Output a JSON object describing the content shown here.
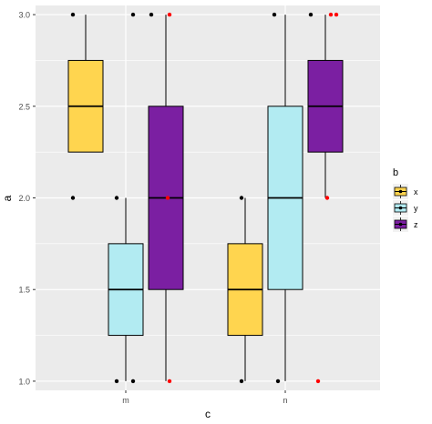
{
  "chart_data": {
    "type": "boxplot",
    "xlabel": "c",
    "ylabel": "a",
    "categories": [
      "m",
      "n"
    ],
    "ylim": [
      0.95,
      3.05
    ],
    "yticks": [
      1.0,
      1.5,
      2.0,
      2.5,
      3.0
    ],
    "ytick_labels": [
      "1.0",
      "1.5",
      "2.0",
      "2.5",
      "3.0"
    ],
    "grid": true,
    "legend": {
      "title": "b",
      "position": "right",
      "entries": [
        {
          "label": "x",
          "color": "#FFD54F"
        },
        {
          "label": "y",
          "color": "#B2EBF2"
        },
        {
          "label": "z",
          "color": "#7B1FA2"
        }
      ]
    },
    "series": [
      {
        "name": "x",
        "color": "#FFD54F",
        "boxes": [
          {
            "category": "m",
            "min": 2.25,
            "q1": 2.25,
            "median": 2.5,
            "q3": 2.75,
            "max": 3.0
          },
          {
            "category": "n",
            "min": 1.0,
            "q1": 1.25,
            "median": 1.5,
            "q3": 1.75,
            "max": 2.0
          }
        ],
        "points": [
          {
            "category": "m",
            "offset": -0.7,
            "y": 3.0,
            "color": "#000000"
          },
          {
            "category": "m",
            "offset": -0.7,
            "y": 2.0,
            "color": "#000000"
          },
          {
            "category": "n",
            "offset": -0.2,
            "y": 2.0,
            "color": "#000000"
          },
          {
            "category": "n",
            "offset": -0.2,
            "y": 1.0,
            "color": "#000000"
          }
        ]
      },
      {
        "name": "y",
        "color": "#B2EBF2",
        "boxes": [
          {
            "category": "m",
            "min": 1.0,
            "q1": 1.25,
            "median": 1.5,
            "q3": 1.75,
            "max": 2.0
          },
          {
            "category": "n",
            "min": 1.0,
            "q1": 1.5,
            "median": 2.0,
            "q3": 2.5,
            "max": 3.0
          }
        ],
        "points": [
          {
            "category": "m",
            "offset": -0.5,
            "y": 2.0,
            "color": "#000000"
          },
          {
            "category": "m",
            "offset": -0.5,
            "y": 1.0,
            "color": "#000000"
          },
          {
            "category": "m",
            "offset": 0.4,
            "y": 1.0,
            "color": "#000000"
          },
          {
            "category": "m",
            "offset": 0.4,
            "y": 3.0,
            "color": "#000000"
          },
          {
            "category": "n",
            "offset": -0.6,
            "y": 3.0,
            "color": "#000000"
          },
          {
            "category": "n",
            "offset": -0.4,
            "y": 1.0,
            "color": "#000000"
          }
        ]
      },
      {
        "name": "z",
        "color": "#7B1FA2",
        "boxes": [
          {
            "category": "m",
            "min": 1.0,
            "q1": 1.5,
            "median": 2.0,
            "q3": 2.5,
            "max": 3.0
          },
          {
            "category": "n",
            "min": 2.0,
            "q1": 2.25,
            "median": 2.5,
            "q3": 2.75,
            "max": 3.0
          }
        ],
        "points": [
          {
            "category": "m",
            "offset": -0.8,
            "y": 3.0,
            "color": "#000000"
          },
          {
            "category": "m",
            "offset": 0.2,
            "y": 3.0,
            "color": "#FF0000"
          },
          {
            "category": "m",
            "offset": 0.1,
            "y": 2.0,
            "color": "#FF0000"
          },
          {
            "category": "m",
            "offset": 0.2,
            "y": 1.0,
            "color": "#FF0000"
          },
          {
            "category": "n",
            "offset": -0.8,
            "y": 3.0,
            "color": "#000000"
          },
          {
            "category": "n",
            "offset": 0.3,
            "y": 3.0,
            "color": "#FF0000"
          },
          {
            "category": "n",
            "offset": 0.6,
            "y": 3.0,
            "color": "#FF0000"
          },
          {
            "category": "n",
            "offset": 0.1,
            "y": 2.0,
            "color": "#FF0000"
          },
          {
            "category": "n",
            "offset": -0.4,
            "y": 1.0,
            "color": "#FF0000"
          }
        ]
      }
    ]
  }
}
